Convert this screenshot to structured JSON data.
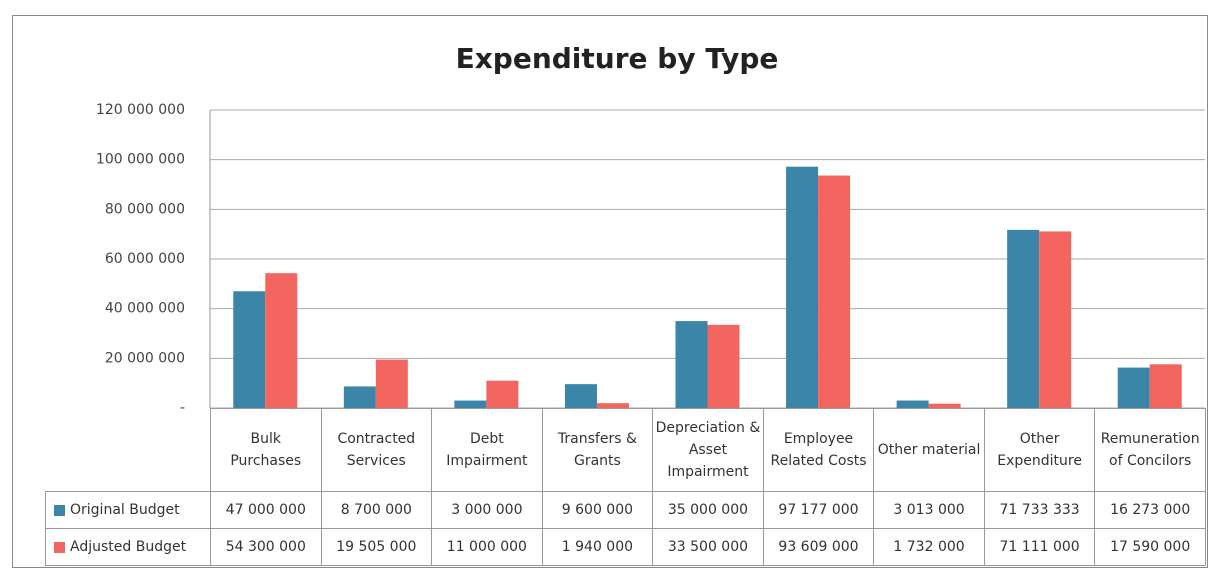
{
  "chart_data": {
    "type": "bar",
    "title": "Expenditure by Type",
    "categories": [
      "Bulk Purchases",
      "Contracted Services",
      "Debt Impairment",
      "Transfers & Grants",
      "Depreciation & Asset Impairment",
      "Employee Related Costs",
      "Other material",
      "Other Expenditure",
      "Remuneration of Concilors"
    ],
    "series": [
      {
        "name": "Original Budget",
        "color": "#3b86a8",
        "values": [
          47000000,
          8700000,
          3000000,
          9600000,
          35000000,
          97177000,
          3013000,
          71733333,
          16273000
        ],
        "value_labels": [
          "47 000 000",
          "8 700 000",
          "3 000 000",
          "9 600 000",
          "35 000 000",
          "97 177 000",
          "3 013 000",
          "71 733 333",
          "16 273 000"
        ]
      },
      {
        "name": "Adjusted Budget",
        "color": "#f2665f",
        "values": [
          54300000,
          19505000,
          11000000,
          1940000,
          33500000,
          93609000,
          1732000,
          71111000,
          17590000
        ],
        "value_labels": [
          "54 300 000",
          "19 505 000",
          "11 000 000",
          "1 940 000",
          "33 500 000",
          "93 609 000",
          "1 732 000",
          "71 111 000",
          "17 590 000"
        ]
      }
    ],
    "ylim": [
      0,
      120000000
    ],
    "yticks": [
      {
        "value": 0,
        "label": "-"
      },
      {
        "value": 20000000,
        "label": "20 000 000"
      },
      {
        "value": 40000000,
        "label": "40 000 000"
      },
      {
        "value": 60000000,
        "label": "60 000 000"
      },
      {
        "value": 80000000,
        "label": "80 000 000"
      },
      {
        "value": 100000000,
        "label": "100 000 000"
      },
      {
        "value": 120000000,
        "label": "120 000 000"
      }
    ],
    "grid": true
  }
}
